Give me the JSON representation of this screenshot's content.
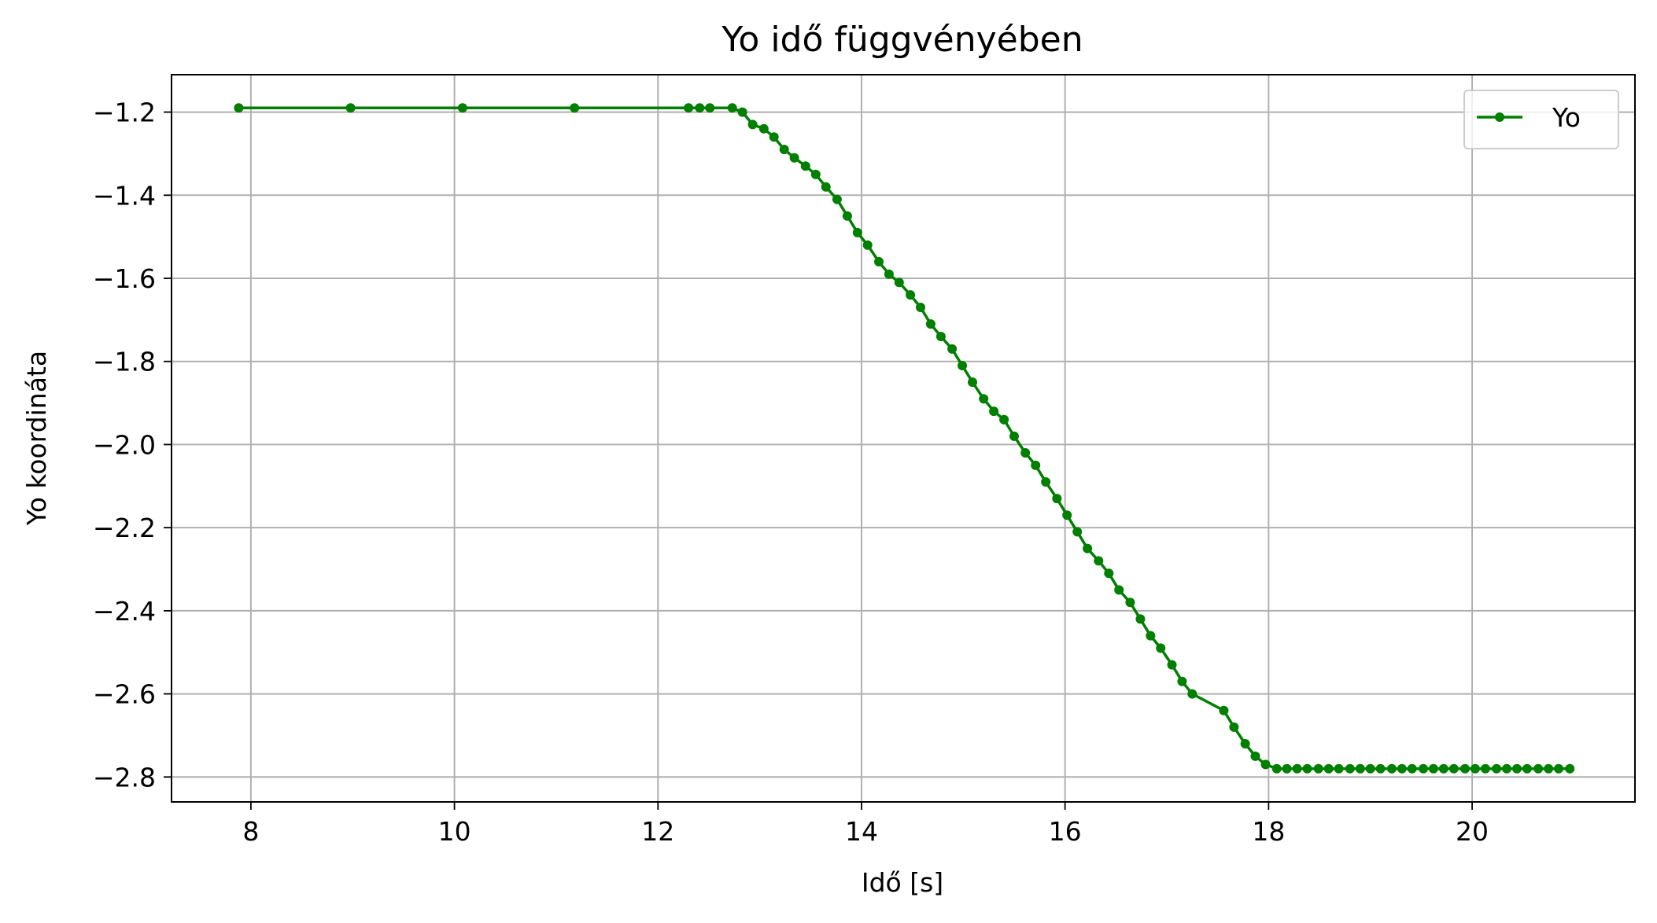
{
  "colors": {
    "line": "#007f00",
    "grid": "#b0b0b0",
    "axes": "#000000",
    "background": "#ffffff"
  },
  "chart_data": {
    "type": "line",
    "title": "Yo idő függvényében",
    "xlabel": "Idő [s]",
    "ylabel": "Yo koordináta",
    "xlim": [
      7.22,
      21.6
    ],
    "ylim": [
      -2.86,
      -1.11
    ],
    "xticks": [
      8,
      10,
      12,
      14,
      16,
      18,
      20
    ],
    "yticks": [
      -1.2,
      -1.4,
      -1.6,
      -1.8,
      -2.0,
      -2.2,
      -2.4,
      -2.6,
      -2.8
    ],
    "xtick_labels": [
      "8",
      "10",
      "12",
      "14",
      "16",
      "18",
      "20"
    ],
    "ytick_labels": [
      "−1.2",
      "−1.4",
      "−1.6",
      "−1.8",
      "−2.0",
      "−2.2",
      "−2.4",
      "−2.6",
      "−2.8"
    ],
    "grid": true,
    "legend": {
      "position": "top-right",
      "entries": [
        "Yo"
      ]
    },
    "series": [
      {
        "name": "Yo",
        "color": "#007f00",
        "marker": "circle",
        "x": [
          7.88,
          8.98,
          10.08,
          11.18,
          12.3,
          12.41,
          12.51,
          12.73,
          12.83,
          12.93,
          13.04,
          13.14,
          13.24,
          13.34,
          13.45,
          13.55,
          13.65,
          13.76,
          13.86,
          13.96,
          14.06,
          14.17,
          14.27,
          14.37,
          14.48,
          14.58,
          14.68,
          14.78,
          14.89,
          14.99,
          15.09,
          15.2,
          15.3,
          15.4,
          15.5,
          15.61,
          15.71,
          15.81,
          15.92,
          16.02,
          16.12,
          16.22,
          16.33,
          16.43,
          16.53,
          16.64,
          16.74,
          16.84,
          16.94,
          17.05,
          17.15,
          17.25,
          17.56,
          17.66,
          17.77,
          17.87,
          17.97,
          18.08,
          18.18,
          18.28,
          18.38,
          18.49,
          18.59,
          18.69,
          18.8,
          18.9,
          19.0,
          19.1,
          19.21,
          19.31,
          19.41,
          19.52,
          19.62,
          19.72,
          19.82,
          19.93,
          20.03,
          20.13,
          20.24,
          20.34,
          20.44,
          20.54,
          20.65,
          20.75,
          20.85,
          20.96
        ],
        "y": [
          -1.19,
          -1.19,
          -1.19,
          -1.19,
          -1.19,
          -1.19,
          -1.19,
          -1.19,
          -1.2,
          -1.23,
          -1.24,
          -1.26,
          -1.29,
          -1.31,
          -1.33,
          -1.35,
          -1.38,
          -1.41,
          -1.45,
          -1.49,
          -1.52,
          -1.56,
          -1.59,
          -1.61,
          -1.64,
          -1.67,
          -1.71,
          -1.74,
          -1.77,
          -1.81,
          -1.85,
          -1.89,
          -1.92,
          -1.94,
          -1.98,
          -2.02,
          -2.05,
          -2.09,
          -2.13,
          -2.17,
          -2.21,
          -2.25,
          -2.28,
          -2.31,
          -2.35,
          -2.38,
          -2.42,
          -2.46,
          -2.49,
          -2.53,
          -2.57,
          -2.6,
          -2.64,
          -2.68,
          -2.72,
          -2.75,
          -2.77,
          -2.78,
          -2.78,
          -2.78,
          -2.78,
          -2.78,
          -2.78,
          -2.78,
          -2.78,
          -2.78,
          -2.78,
          -2.78,
          -2.78,
          -2.78,
          -2.78,
          -2.78,
          -2.78,
          -2.78,
          -2.78,
          -2.78,
          -2.78,
          -2.78,
          -2.78,
          -2.78,
          -2.78,
          -2.78,
          -2.78,
          -2.78,
          -2.78,
          -2.78
        ]
      }
    ]
  }
}
